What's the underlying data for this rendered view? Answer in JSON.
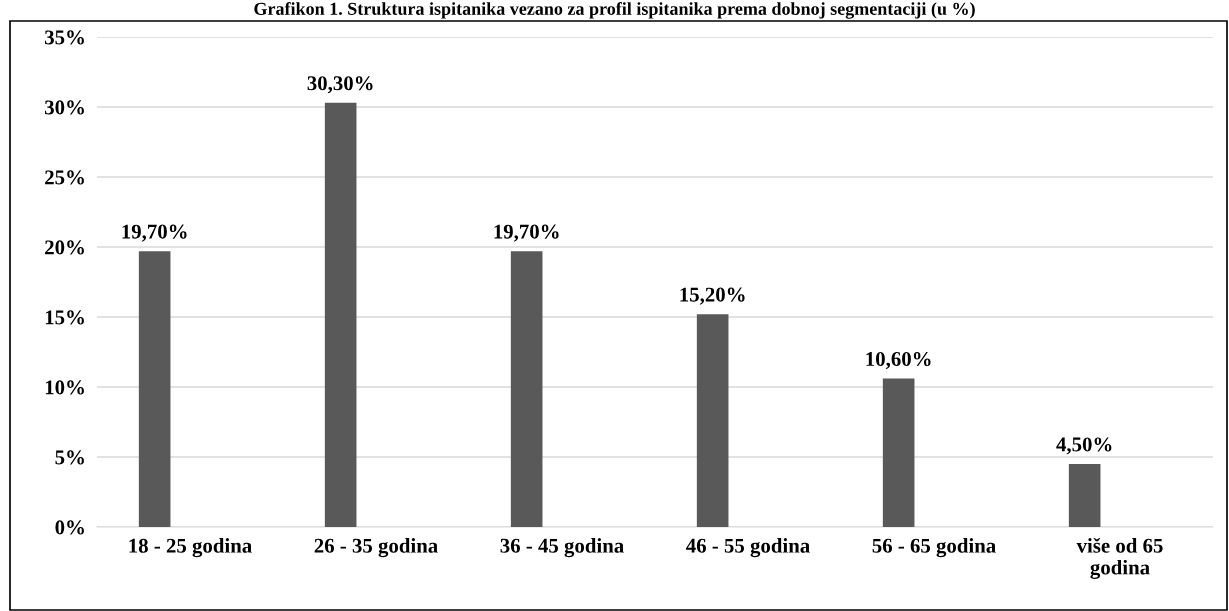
{
  "chart_data": {
    "type": "bar",
    "title": "Grafikon 1. Struktura ispitanika vezano za profil ispitanika prema dobnoj segmentaciji (u %)",
    "categories": [
      "18 - 25 godina",
      "26 - 35 godina",
      "36 - 45 godina",
      "46 - 55 godina",
      "56 - 65 godina",
      "više od 65\ngodina"
    ],
    "values": [
      19.7,
      30.3,
      19.7,
      15.2,
      10.6,
      4.5
    ],
    "value_labels": [
      "19,70%",
      "30,30%",
      "19,70%",
      "15,20%",
      "10,60%",
      "4,50%"
    ],
    "color": "#595959",
    "ylim": [
      0,
      35
    ],
    "yticks": [
      {
        "value": 0,
        "label": "0%"
      },
      {
        "value": 5,
        "label": "5%"
      },
      {
        "value": 10,
        "label": "10%"
      },
      {
        "value": 15,
        "label": "15%"
      },
      {
        "value": 20,
        "label": "20%"
      },
      {
        "value": 25,
        "label": "25%"
      },
      {
        "value": 30,
        "label": "30%"
      },
      {
        "value": 35,
        "label": "35%"
      }
    ],
    "grid": "y",
    "legend": false
  }
}
